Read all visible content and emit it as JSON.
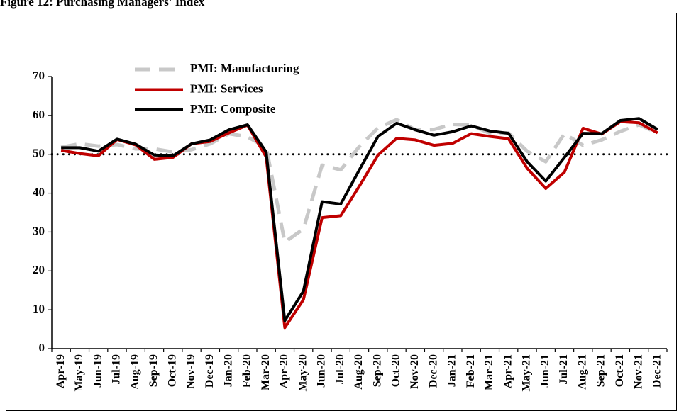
{
  "chart_data": {
    "type": "line",
    "title": "Figure 12: Purchasing Managers' Index",
    "categories": [
      "Apr-19",
      "May-19",
      "Jun-19",
      "Jul-19",
      "Aug-19",
      "Sep-19",
      "Oct-19",
      "Nov-19",
      "Dec-19",
      "Jan-20",
      "Feb-20",
      "Mar-20",
      "Apr-20",
      "May-20",
      "Jun-20",
      "Jul-20",
      "Aug-20",
      "Sep-20",
      "Oct-20",
      "Nov-20",
      "Dec-20",
      "Jan-21",
      "Feb-21",
      "Mar-21",
      "Apr-21",
      "May-21",
      "Jun-21",
      "Jul-21",
      "Aug-21",
      "Sep-21",
      "Oct-21",
      "Nov-21",
      "Dec-21"
    ],
    "series": [
      {
        "name": "PMI: Manufacturing",
        "color": "#c8c8c8",
        "dashed": true,
        "values": [
          51.8,
          52.7,
          52.1,
          52.5,
          51.4,
          51.4,
          50.6,
          51.2,
          52.7,
          55.3,
          54.5,
          51.8,
          27.4,
          30.8,
          47.2,
          46.0,
          52.0,
          56.8,
          58.9,
          56.3,
          56.4,
          57.7,
          57.5,
          55.4,
          55.5,
          50.8,
          48.1,
          55.3,
          52.3,
          53.7,
          55.9,
          57.6,
          55.5
        ]
      },
      {
        "name": "PMI: Services",
        "color": "#c00000",
        "dashed": false,
        "values": [
          51.0,
          50.2,
          49.6,
          53.8,
          52.4,
          48.7,
          49.2,
          52.7,
          53.3,
          55.5,
          57.5,
          49.3,
          5.4,
          12.6,
          33.7,
          34.2,
          41.8,
          49.8,
          54.1,
          53.7,
          52.3,
          52.8,
          55.3,
          54.6,
          54.0,
          46.4,
          41.2,
          45.4,
          56.7,
          55.2,
          58.4,
          58.1,
          55.5
        ]
      },
      {
        "name": "PMI: Composite",
        "color": "#000000",
        "dashed": false,
        "values": [
          51.7,
          51.7,
          50.8,
          53.9,
          52.6,
          49.8,
          49.6,
          52.7,
          53.7,
          56.3,
          57.6,
          50.6,
          7.2,
          14.8,
          37.8,
          37.2,
          46.0,
          54.6,
          58.0,
          56.3,
          54.9,
          55.8,
          57.3,
          56.0,
          55.4,
          48.1,
          43.1,
          49.2,
          55.4,
          55.3,
          58.7,
          59.2,
          56.4
        ]
      }
    ],
    "hline": 50,
    "ylim": [
      0,
      70
    ],
    "yticks": [
      0,
      10,
      20,
      30,
      40,
      50,
      60,
      70
    ],
    "grid": false
  }
}
